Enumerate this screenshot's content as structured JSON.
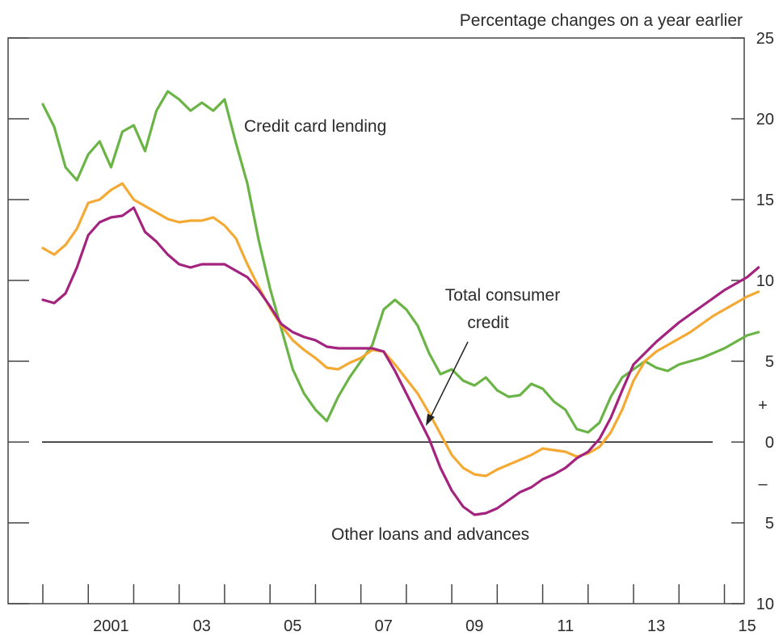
{
  "chart_data": {
    "type": "line",
    "unit_label": "Percentage changes on a year earlier",
    "x_tick_labels": [
      "2001",
      "03",
      "05",
      "07",
      "09",
      "11",
      "13",
      "15"
    ],
    "x_tick_years": [
      2001.5,
      2003.5,
      2005.5,
      2007.5,
      2009.5,
      2011.5,
      2013.5,
      2015.5
    ],
    "xlim": [
      2000,
      2016.2
    ],
    "ylim": [
      -10,
      25
    ],
    "y_ticks": [
      {
        "value": 25,
        "label": "25"
      },
      {
        "value": 20,
        "label": "20"
      },
      {
        "value": 15,
        "label": "15"
      },
      {
        "value": 10,
        "label": "10"
      },
      {
        "value": 5,
        "label": "5"
      },
      {
        "value": 0,
        "label": "0"
      },
      {
        "value": -5,
        "label": "5"
      },
      {
        "value": -10,
        "label": "10"
      }
    ],
    "sign_labels": {
      "plus": "+",
      "minus": "–"
    },
    "zero_line": true,
    "annotations": {
      "credit_card": "Credit card lending",
      "total_line1": "Total consumer",
      "total_line2": "credit",
      "other_loans": "Other loans and advances"
    },
    "series": [
      {
        "key": "credit_card",
        "color": "#6ab446",
        "x": [
          2000.0,
          2000.25,
          2000.5,
          2000.75,
          2001.0,
          2001.25,
          2001.5,
          2001.75,
          2002.0,
          2002.25,
          2002.5,
          2002.75,
          2003.0,
          2003.25,
          2003.5,
          2003.75,
          2004.0,
          2004.25,
          2004.5,
          2004.75,
          2005.0,
          2005.25,
          2005.5,
          2005.75,
          2006.0,
          2006.25,
          2006.5,
          2006.75,
          2007.0,
          2007.25,
          2007.5,
          2007.75,
          2008.0,
          2008.25,
          2008.5,
          2008.75,
          2009.0,
          2009.25,
          2009.5,
          2009.75,
          2010.0,
          2010.25,
          2010.5,
          2010.75,
          2011.0,
          2011.25,
          2011.5,
          2011.75,
          2012.0,
          2012.25,
          2012.5,
          2012.75,
          2013.0,
          2013.25,
          2013.5,
          2013.75,
          2014.0,
          2014.25,
          2014.5,
          2014.75,
          2015.0,
          2015.25,
          2015.5,
          2015.75
        ],
        "values": [
          20.9,
          19.5,
          17.0,
          16.2,
          17.8,
          18.6,
          17.0,
          19.2,
          19.6,
          18.0,
          20.5,
          21.7,
          21.2,
          20.5,
          21.0,
          20.5,
          21.2,
          18.5,
          16.0,
          12.5,
          9.5,
          7.0,
          4.5,
          3.0,
          2.0,
          1.3,
          2.8,
          4.0,
          5.0,
          6.0,
          8.2,
          8.8,
          8.2,
          7.2,
          5.5,
          4.2,
          4.5,
          3.8,
          3.5,
          4.0,
          3.2,
          2.8,
          2.9,
          3.6,
          3.3,
          2.5,
          2.0,
          0.8,
          0.6,
          1.2,
          2.8,
          4.0,
          4.5,
          5.0,
          4.6,
          4.4,
          4.8,
          5.0,
          5.2,
          5.5,
          5.8,
          6.2,
          6.6,
          6.8
        ]
      },
      {
        "key": "total",
        "color": "#f4a934",
        "x": [
          2000.0,
          2000.25,
          2000.5,
          2000.75,
          2001.0,
          2001.25,
          2001.5,
          2001.75,
          2002.0,
          2002.25,
          2002.5,
          2002.75,
          2003.0,
          2003.25,
          2003.5,
          2003.75,
          2004.0,
          2004.25,
          2004.5,
          2004.75,
          2005.0,
          2005.25,
          2005.5,
          2005.75,
          2006.0,
          2006.25,
          2006.5,
          2006.75,
          2007.0,
          2007.25,
          2007.5,
          2007.75,
          2008.0,
          2008.25,
          2008.5,
          2008.75,
          2009.0,
          2009.25,
          2009.5,
          2009.75,
          2010.0,
          2010.25,
          2010.5,
          2010.75,
          2011.0,
          2011.25,
          2011.5,
          2011.75,
          2012.0,
          2012.25,
          2012.5,
          2012.75,
          2013.0,
          2013.25,
          2013.5,
          2013.75,
          2014.0,
          2014.25,
          2014.5,
          2014.75,
          2015.0,
          2015.25,
          2015.5,
          2015.75
        ],
        "values": [
          12.0,
          11.6,
          12.2,
          13.2,
          14.8,
          15.0,
          15.6,
          16.0,
          15.0,
          14.6,
          14.2,
          13.8,
          13.6,
          13.7,
          13.7,
          13.9,
          13.4,
          12.6,
          11.0,
          9.6,
          8.3,
          7.2,
          6.3,
          5.7,
          5.2,
          4.6,
          4.5,
          4.9,
          5.2,
          5.7,
          5.6,
          4.8,
          3.9,
          3.0,
          1.8,
          0.5,
          -0.8,
          -1.6,
          -2.0,
          -2.1,
          -1.7,
          -1.4,
          -1.1,
          -0.8,
          -0.4,
          -0.5,
          -0.6,
          -0.9,
          -0.7,
          -0.3,
          0.6,
          2.0,
          3.8,
          5.0,
          5.6,
          6.0,
          6.4,
          6.8,
          7.3,
          7.8,
          8.2,
          8.6,
          9.0,
          9.3
        ]
      },
      {
        "key": "other_loans",
        "color": "#a3237e",
        "x": [
          2000.0,
          2000.25,
          2000.5,
          2000.75,
          2001.0,
          2001.25,
          2001.5,
          2001.75,
          2002.0,
          2002.25,
          2002.5,
          2002.75,
          2003.0,
          2003.25,
          2003.5,
          2003.75,
          2004.0,
          2004.25,
          2004.5,
          2004.75,
          2005.0,
          2005.25,
          2005.5,
          2005.75,
          2006.0,
          2006.25,
          2006.5,
          2006.75,
          2007.0,
          2007.25,
          2007.5,
          2007.75,
          2008.0,
          2008.25,
          2008.5,
          2008.75,
          2009.0,
          2009.25,
          2009.5,
          2009.75,
          2010.0,
          2010.25,
          2010.5,
          2010.75,
          2011.0,
          2011.25,
          2011.5,
          2011.75,
          2012.0,
          2012.25,
          2012.5,
          2012.75,
          2013.0,
          2013.25,
          2013.5,
          2013.75,
          2014.0,
          2014.25,
          2014.5,
          2014.75,
          2015.0,
          2015.25,
          2015.5,
          2015.75
        ],
        "values": [
          8.8,
          8.6,
          9.2,
          10.8,
          12.8,
          13.6,
          13.9,
          14.0,
          14.5,
          13.0,
          12.4,
          11.6,
          11.0,
          10.8,
          11.0,
          11.0,
          11.0,
          10.6,
          10.2,
          9.4,
          8.4,
          7.3,
          6.8,
          6.5,
          6.3,
          5.9,
          5.8,
          5.8,
          5.8,
          5.8,
          5.6,
          4.4,
          3.0,
          1.6,
          0.2,
          -1.6,
          -3.0,
          -4.0,
          -4.5,
          -4.4,
          -4.1,
          -3.6,
          -3.1,
          -2.8,
          -2.3,
          -2.0,
          -1.6,
          -1.0,
          -0.6,
          0.2,
          1.5,
          3.2,
          4.8,
          5.5,
          6.2,
          6.8,
          7.4,
          7.9,
          8.4,
          8.9,
          9.4,
          9.8,
          10.2,
          10.8
        ]
      }
    ]
  }
}
